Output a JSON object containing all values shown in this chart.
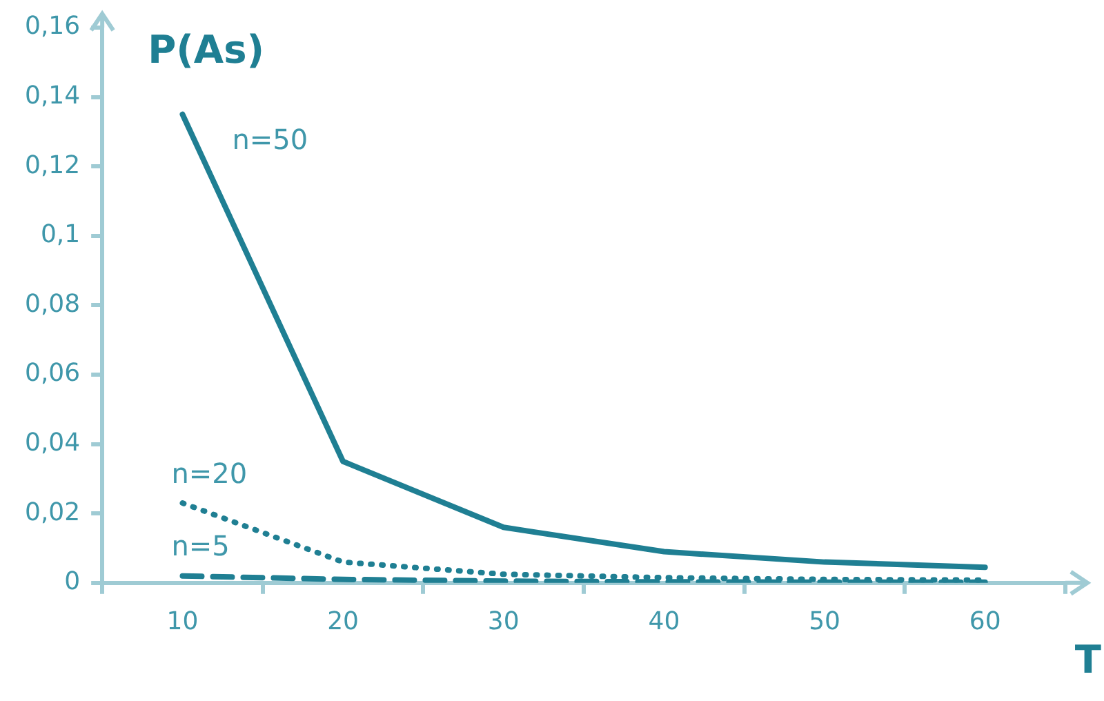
{
  "chart_data": {
    "type": "line",
    "xlabel": "T",
    "ylabel": "P(As)",
    "categories": [
      "10",
      "20",
      "30",
      "40",
      "50",
      "60"
    ],
    "ylim": [
      0,
      0.16
    ],
    "yticks": [
      {
        "value": 0,
        "label": "0"
      },
      {
        "value": 0.02,
        "label": "0,02"
      },
      {
        "value": 0.04,
        "label": "0,04"
      },
      {
        "value": 0.06,
        "label": "0,06"
      },
      {
        "value": 0.08,
        "label": "0,08"
      },
      {
        "value": 0.1,
        "label": "0,1"
      },
      {
        "value": 0.12,
        "label": "0,12"
      },
      {
        "value": 0.14,
        "label": "0,14"
      },
      {
        "value": 0.16,
        "label": "0,16"
      }
    ],
    "grid": false,
    "legend": false,
    "marker": "none",
    "series": [
      {
        "name": "n=50",
        "color": "#1f7f93",
        "line_style": "solid",
        "values": [
          0.135,
          0.035,
          0.016,
          0.009,
          0.006,
          0.0045
        ]
      },
      {
        "name": "n=20",
        "color": "#1f7f93",
        "line_style": "dotted",
        "values": [
          0.023,
          0.006,
          0.0025,
          0.0015,
          0.001,
          0.0008
        ]
      },
      {
        "name": "n=5",
        "color": "#1f7f93",
        "line_style": "dashed",
        "values": [
          0.002,
          0.001,
          0.0005,
          0.0003,
          0.0002,
          0.0002
        ]
      }
    ]
  }
}
